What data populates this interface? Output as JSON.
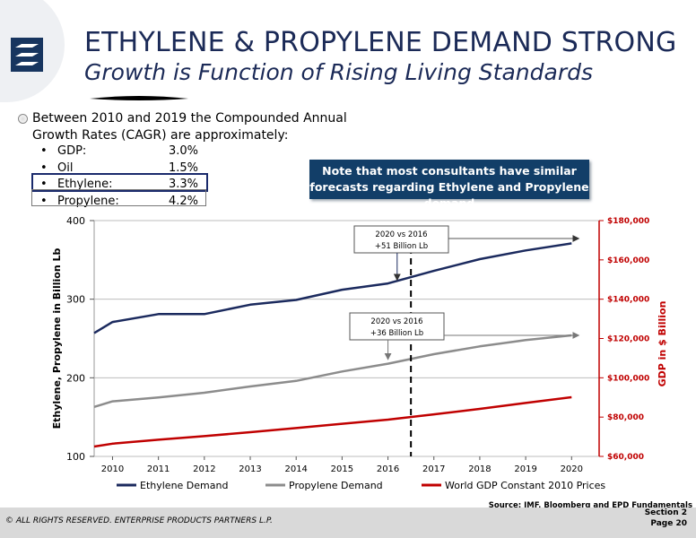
{
  "header": {
    "title": "ETHYLENE & PROPYLENE DEMAND STRONG",
    "subtitle": "Growth is Function of Rising Living Standards"
  },
  "bullets": {
    "main": "Between 2010 and 2019 the Compounded Annual Growth Rates (CAGR) are approximately:",
    "rates": [
      {
        "name": "GDP:",
        "value": "3.0%"
      },
      {
        "name": "Oil",
        "value": "1.5%"
      },
      {
        "name": "Ethylene:",
        "value": "3.3%"
      },
      {
        "name": "Propylene:",
        "value": "4.2%"
      }
    ]
  },
  "note": "Note that most consultants have similar forecasts regarding Ethylene and Propylene demand",
  "chart_data": {
    "type": "line",
    "categories": [
      "2010",
      "2011",
      "2012",
      "2013",
      "2014",
      "2015",
      "2016",
      "2017",
      "2018",
      "2019",
      "2020"
    ],
    "ylabel": "Ethylene, Propylene in Billion Lb",
    "y2label": "GDP in $ Billion",
    "ylim": [
      100,
      400
    ],
    "y2lim": [
      60000,
      180000
    ],
    "yticks": [
      "100",
      "200",
      "300",
      "400"
    ],
    "y2ticks": [
      "$60,000",
      "$80,000",
      "$100,000",
      "$120,000",
      "$140,000",
      "$160,000",
      "$180,000"
    ],
    "legend_position": "bottom",
    "grid": true,
    "series": [
      {
        "name": "Ethylene Demand",
        "axis": "left",
        "color": "#1b2a5e",
        "points": [
          [
            2009.6,
            257
          ],
          [
            2010,
            271
          ],
          [
            2011,
            281
          ],
          [
            2012,
            281
          ],
          [
            2013,
            293
          ],
          [
            2014,
            299
          ],
          [
            2015,
            312
          ],
          [
            2016,
            320
          ],
          [
            2017,
            336
          ],
          [
            2018,
            351
          ],
          [
            2019,
            362
          ],
          [
            2020,
            371
          ]
        ]
      },
      {
        "name": "Propylene Demand",
        "axis": "left",
        "color": "#8c8c8c",
        "points": [
          [
            2009.6,
            163
          ],
          [
            2010,
            170
          ],
          [
            2011,
            175
          ],
          [
            2012,
            181
          ],
          [
            2013,
            189
          ],
          [
            2014,
            196
          ],
          [
            2015,
            208
          ],
          [
            2016,
            218
          ],
          [
            2017,
            230
          ],
          [
            2018,
            240
          ],
          [
            2019,
            248
          ],
          [
            2020,
            254
          ]
        ]
      },
      {
        "name": "World GDP Constant 2010 Prices",
        "axis": "right",
        "color": "#c00000",
        "points": [
          [
            2009.6,
            65000
          ],
          [
            2010,
            66500
          ],
          [
            2011,
            68500
          ],
          [
            2012,
            70300
          ],
          [
            2013,
            72300
          ],
          [
            2014,
            74400
          ],
          [
            2015,
            76600
          ],
          [
            2016,
            78700
          ],
          [
            2017,
            81400
          ],
          [
            2018,
            84200
          ],
          [
            2019,
            87200
          ],
          [
            2020,
            90100
          ]
        ]
      }
    ],
    "vline_year": 2016.5,
    "annotations": [
      {
        "label": "2020 vs 2016",
        "value": "+51 Billion Lb"
      },
      {
        "label": "2020 vs 2016",
        "value": "+36 Billion Lb"
      }
    ]
  },
  "source": "Source: IMF, Bloomberg and EPD Fundamentals",
  "footer": {
    "copyright": "© ALL RIGHTS RESERVED. ENTERPRISE PRODUCTS PARTNERS L.P.",
    "section": "Section 2",
    "page": "Page 20"
  },
  "colors": {
    "navy": "#1b2a5e",
    "accent_red": "#c00000",
    "note_bg": "#123e68"
  },
  "icons": {
    "logo": "enterprise-logo-icon"
  }
}
